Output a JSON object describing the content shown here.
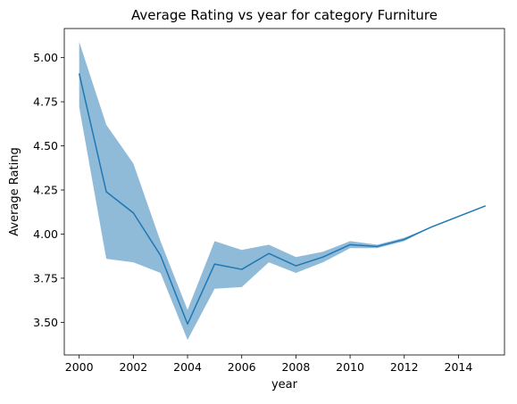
{
  "chart_data": {
    "type": "line",
    "title": "Average Rating vs year for category Furniture",
    "xlabel": "year",
    "ylabel": "Average Rating",
    "xlim": [
      1999.45,
      2015.7
    ],
    "ylim": [
      3.315,
      5.165
    ],
    "x_ticks": [
      2000,
      2002,
      2004,
      2006,
      2008,
      2010,
      2012,
      2014
    ],
    "x_tick_labels": [
      "2000",
      "2002",
      "2004",
      "2006",
      "2008",
      "2010",
      "2012",
      "2014"
    ],
    "y_ticks": [
      3.5,
      3.75,
      4.0,
      4.25,
      4.5,
      4.75,
      5.0
    ],
    "y_tick_labels": [
      "3.50",
      "3.75",
      "4.00",
      "4.25",
      "4.50",
      "4.75",
      "5.00"
    ],
    "grid": false,
    "series": [
      {
        "x": [
          2000,
          2001,
          2002,
          2003,
          2004,
          2005,
          2006,
          2007,
          2008,
          2009,
          2010,
          2011,
          2012,
          2013,
          2014,
          2015
        ],
        "values": [
          4.91,
          4.24,
          4.12,
          3.88,
          3.49,
          3.83,
          3.8,
          3.89,
          3.82,
          3.87,
          3.94,
          3.93,
          3.97,
          4.04,
          4.1,
          4.16
        ],
        "lower": [
          4.72,
          3.86,
          3.84,
          3.78,
          3.4,
          3.69,
          3.7,
          3.84,
          3.78,
          3.84,
          3.92,
          3.92,
          3.96,
          4.04,
          4.1,
          4.16
        ],
        "upper": [
          5.09,
          4.62,
          4.4,
          3.96,
          3.57,
          3.96,
          3.91,
          3.94,
          3.87,
          3.9,
          3.96,
          3.94,
          3.98,
          4.04,
          4.1,
          4.16
        ],
        "color": "#1f77b4",
        "band_color": "#1f77b4"
      }
    ]
  }
}
